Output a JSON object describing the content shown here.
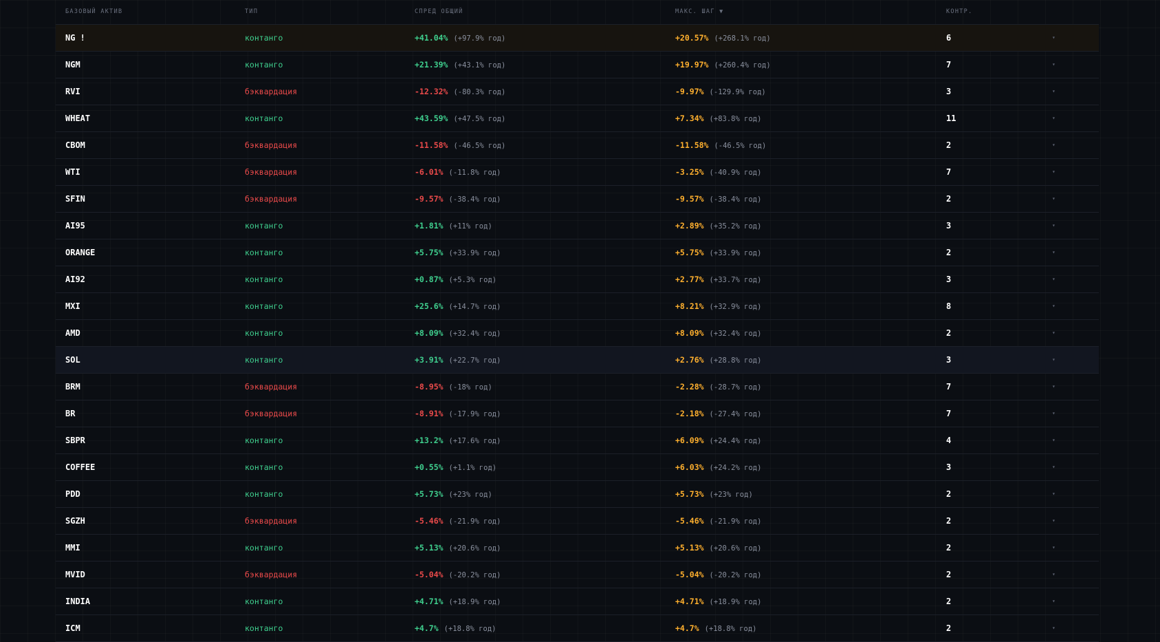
{
  "header": {
    "asset": "БАЗОВЫЙ АКТИВ",
    "type": "ТИП",
    "spread": "СПРЕД ОБЩИЙ",
    "step": "МАКС. ШАГ ▼",
    "count": "КОНТР."
  },
  "colors": {
    "contango": "#3fcf8e",
    "backwardation": "#ea4a4a",
    "step": "#ffb02e",
    "highlight_row": "#17140f",
    "hover_row": "#121620"
  },
  "icons": {
    "row_toggle": "chevron-down-icon"
  },
  "rows": [
    {
      "asset": "NG !",
      "type": "контанго",
      "spread": "+41.04%",
      "spread_year": "(+97.9% год)",
      "step": "+20.57%",
      "step_year": "(+268.1% год)",
      "count": "6",
      "arrow": "▾",
      "highlight": "gold"
    },
    {
      "asset": "NGM",
      "type": "контанго",
      "spread": "+21.39%",
      "spread_year": "(+43.1% год)",
      "step": "+19.97%",
      "step_year": "(+260.4% год)",
      "count": "7",
      "arrow": "▾"
    },
    {
      "asset": "RVI",
      "type": "бэквардация",
      "spread": "-12.32%",
      "spread_year": "(-80.3% год)",
      "step": "-9.97%",
      "step_year": "(-129.9% год)",
      "count": "3",
      "arrow": "▾"
    },
    {
      "asset": "WHEAT",
      "type": "контанго",
      "spread": "+43.59%",
      "spread_year": "(+47.5% год)",
      "step": "+7.34%",
      "step_year": "(+83.8% год)",
      "count": "11",
      "arrow": "▾"
    },
    {
      "asset": "CBOM",
      "type": "бэквардация",
      "spread": "-11.58%",
      "spread_year": "(-46.5% год)",
      "step": "-11.58%",
      "step_year": "(-46.5% год)",
      "count": "2",
      "arrow": "▾"
    },
    {
      "asset": "WTI",
      "type": "бэквардация",
      "spread": "-6.01%",
      "spread_year": "(-11.8% год)",
      "step": "-3.25%",
      "step_year": "(-40.9% год)",
      "count": "7",
      "arrow": "▾"
    },
    {
      "asset": "SFIN",
      "type": "бэквардация",
      "spread": "-9.57%",
      "spread_year": "(-38.4% год)",
      "step": "-9.57%",
      "step_year": "(-38.4% год)",
      "count": "2",
      "arrow": "▾"
    },
    {
      "asset": "AI95",
      "type": "контанго",
      "spread": "+1.81%",
      "spread_year": "(+11% год)",
      "step": "+2.89%",
      "step_year": "(+35.2% год)",
      "count": "3",
      "arrow": "▾"
    },
    {
      "asset": "ORANGE",
      "type": "контанго",
      "spread": "+5.75%",
      "spread_year": "(+33.9% год)",
      "step": "+5.75%",
      "step_year": "(+33.9% год)",
      "count": "2",
      "arrow": "▾"
    },
    {
      "asset": "AI92",
      "type": "контанго",
      "spread": "+0.87%",
      "spread_year": "(+5.3% год)",
      "step": "+2.77%",
      "step_year": "(+33.7% год)",
      "count": "3",
      "arrow": "▾"
    },
    {
      "asset": "MXI",
      "type": "контанго",
      "spread": "+25.6%",
      "spread_year": "(+14.7% год)",
      "step": "+8.21%",
      "step_year": "(+32.9% год)",
      "count": "8",
      "arrow": "▾"
    },
    {
      "asset": "AMD",
      "type": "контанго",
      "spread": "+8.09%",
      "spread_year": "(+32.4% год)",
      "step": "+8.09%",
      "step_year": "(+32.4% год)",
      "count": "2",
      "arrow": "▾"
    },
    {
      "asset": "SOL",
      "type": "контанго",
      "spread": "+3.91%",
      "spread_year": "(+22.7% год)",
      "step": "+2.76%",
      "step_year": "(+28.8% год)",
      "count": "3",
      "arrow": "▾",
      "highlight": "blue"
    },
    {
      "asset": "BRM",
      "type": "бэквардация",
      "spread": "-8.95%",
      "spread_year": "(-18% год)",
      "step": "-2.28%",
      "step_year": "(-28.7% год)",
      "count": "7",
      "arrow": "▾"
    },
    {
      "asset": "BR",
      "type": "бэквардация",
      "spread": "-8.91%",
      "spread_year": "(-17.9% год)",
      "step": "-2.18%",
      "step_year": "(-27.4% год)",
      "count": "7",
      "arrow": "▾"
    },
    {
      "asset": "SBPR",
      "type": "контанго",
      "spread": "+13.2%",
      "spread_year": "(+17.6% год)",
      "step": "+6.09%",
      "step_year": "(+24.4% год)",
      "count": "4",
      "arrow": "▾"
    },
    {
      "asset": "COFFEE",
      "type": "контанго",
      "spread": "+0.55%",
      "spread_year": "(+1.1% год)",
      "step": "+6.03%",
      "step_year": "(+24.2% год)",
      "count": "3",
      "arrow": "▾"
    },
    {
      "asset": "PDD",
      "type": "контанго",
      "spread": "+5.73%",
      "spread_year": "(+23% год)",
      "step": "+5.73%",
      "step_year": "(+23% год)",
      "count": "2",
      "arrow": "▾"
    },
    {
      "asset": "SGZH",
      "type": "бэквардация",
      "spread": "-5.46%",
      "spread_year": "(-21.9% год)",
      "step": "-5.46%",
      "step_year": "(-21.9% год)",
      "count": "2",
      "arrow": "▾"
    },
    {
      "asset": "MMI",
      "type": "контанго",
      "spread": "+5.13%",
      "spread_year": "(+20.6% год)",
      "step": "+5.13%",
      "step_year": "(+20.6% год)",
      "count": "2",
      "arrow": "▾"
    },
    {
      "asset": "MVID",
      "type": "бэквардация",
      "spread": "-5.04%",
      "spread_year": "(-20.2% год)",
      "step": "-5.04%",
      "step_year": "(-20.2% год)",
      "count": "2",
      "arrow": "▾"
    },
    {
      "asset": "INDIA",
      "type": "контанго",
      "spread": "+4.71%",
      "spread_year": "(+18.9% год)",
      "step": "+4.71%",
      "step_year": "(+18.9% год)",
      "count": "2",
      "arrow": "▾"
    },
    {
      "asset": "ICM",
      "type": "контанго",
      "spread": "+4.7%",
      "spread_year": "(+18.8% год)",
      "step": "+4.7%",
      "step_year": "(+18.8% год)",
      "count": "2",
      "arrow": "▾"
    }
  ]
}
